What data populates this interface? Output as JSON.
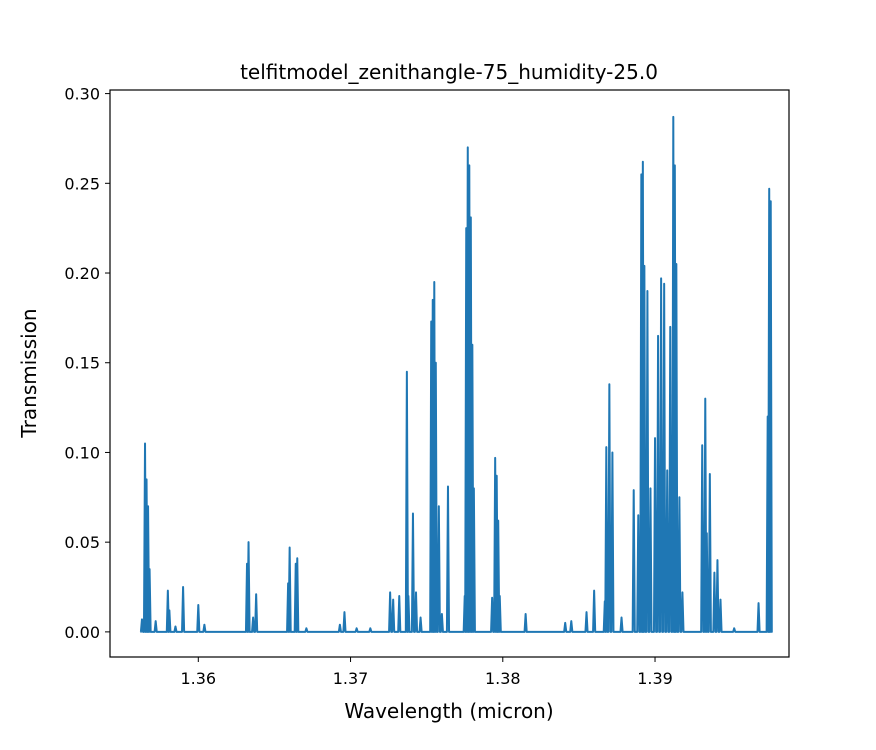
{
  "chart_data": {
    "type": "line",
    "title": "telfitmodel_zenithangle-75_humidity-25.0",
    "xlabel": "Wavelength (micron)",
    "ylabel": "Transmission",
    "xlim": [
      1.3542,
      1.3988
    ],
    "ylim": [
      -0.014,
      0.302
    ],
    "xticks": [
      1.36,
      1.37,
      1.38,
      1.39
    ],
    "xtick_labels": [
      "1.36",
      "1.37",
      "1.38",
      "1.39"
    ],
    "yticks": [
      0.0,
      0.05,
      0.1,
      0.15,
      0.2,
      0.25,
      0.3
    ],
    "ytick_labels": [
      "0.00",
      "0.05",
      "0.10",
      "0.15",
      "0.20",
      "0.25",
      "0.30"
    ],
    "grid": false,
    "series": [
      {
        "color": "#1f77b4",
        "x_range": [
          1.3562,
          1.3976
        ],
        "baseline": 0.0,
        "peaks": [
          [
            1.3563,
            0.007
          ],
          [
            1.3565,
            0.105
          ],
          [
            1.3566,
            0.085
          ],
          [
            1.3567,
            0.07
          ],
          [
            1.3568,
            0.035
          ],
          [
            1.3572,
            0.006
          ],
          [
            1.358,
            0.023
          ],
          [
            1.3581,
            0.012
          ],
          [
            1.3585,
            0.003
          ],
          [
            1.359,
            0.025
          ],
          [
            1.36,
            0.015
          ],
          [
            1.3604,
            0.004
          ],
          [
            1.3632,
            0.038
          ],
          [
            1.3633,
            0.05
          ],
          [
            1.3636,
            0.008
          ],
          [
            1.3638,
            0.021
          ],
          [
            1.3659,
            0.027
          ],
          [
            1.366,
            0.047
          ],
          [
            1.3664,
            0.038
          ],
          [
            1.3665,
            0.041
          ],
          [
            1.3671,
            0.002
          ],
          [
            1.3693,
            0.004
          ],
          [
            1.3696,
            0.011
          ],
          [
            1.3704,
            0.002
          ],
          [
            1.3713,
            0.002
          ],
          [
            1.3726,
            0.022
          ],
          [
            1.3728,
            0.018
          ],
          [
            1.3732,
            0.02
          ],
          [
            1.3737,
            0.145
          ],
          [
            1.3738,
            0.02
          ],
          [
            1.3741,
            0.066
          ],
          [
            1.3743,
            0.022
          ],
          [
            1.3746,
            0.008
          ],
          [
            1.3753,
            0.173
          ],
          [
            1.3754,
            0.185
          ],
          [
            1.3755,
            0.195
          ],
          [
            1.3756,
            0.15
          ],
          [
            1.3758,
            0.07
          ],
          [
            1.376,
            0.01
          ],
          [
            1.3764,
            0.081
          ],
          [
            1.3775,
            0.02
          ],
          [
            1.3776,
            0.225
          ],
          [
            1.3777,
            0.27
          ],
          [
            1.3778,
            0.26
          ],
          [
            1.3779,
            0.231
          ],
          [
            1.378,
            0.16
          ],
          [
            1.3781,
            0.08
          ],
          [
            1.3793,
            0.019
          ],
          [
            1.3795,
            0.097
          ],
          [
            1.3796,
            0.087
          ],
          [
            1.3797,
            0.062
          ],
          [
            1.3798,
            0.02
          ],
          [
            1.3815,
            0.01
          ],
          [
            1.3841,
            0.005
          ],
          [
            1.3845,
            0.006
          ],
          [
            1.3855,
            0.011
          ],
          [
            1.386,
            0.023
          ],
          [
            1.3867,
            0.017
          ],
          [
            1.3868,
            0.103
          ],
          [
            1.387,
            0.138
          ],
          [
            1.3872,
            0.1
          ],
          [
            1.3878,
            0.008
          ],
          [
            1.3886,
            0.079
          ],
          [
            1.3889,
            0.065
          ],
          [
            1.3891,
            0.255
          ],
          [
            1.3892,
            0.262
          ],
          [
            1.3893,
            0.204
          ],
          [
            1.3895,
            0.19
          ],
          [
            1.3897,
            0.08
          ],
          [
            1.39,
            0.108
          ],
          [
            1.3902,
            0.165
          ],
          [
            1.3904,
            0.197
          ],
          [
            1.3906,
            0.194
          ],
          [
            1.3908,
            0.09
          ],
          [
            1.391,
            0.17
          ],
          [
            1.3912,
            0.287
          ],
          [
            1.3913,
            0.26
          ],
          [
            1.3914,
            0.205
          ],
          [
            1.3916,
            0.075
          ],
          [
            1.3918,
            0.022
          ],
          [
            1.3931,
            0.104
          ],
          [
            1.3933,
            0.13
          ],
          [
            1.3934,
            0.055
          ],
          [
            1.3936,
            0.088
          ],
          [
            1.3939,
            0.033
          ],
          [
            1.3941,
            0.04
          ],
          [
            1.3943,
            0.018
          ],
          [
            1.3952,
            0.002
          ],
          [
            1.3968,
            0.016
          ],
          [
            1.3974,
            0.12
          ],
          [
            1.3975,
            0.247
          ],
          [
            1.3976,
            0.24
          ]
        ]
      }
    ]
  }
}
